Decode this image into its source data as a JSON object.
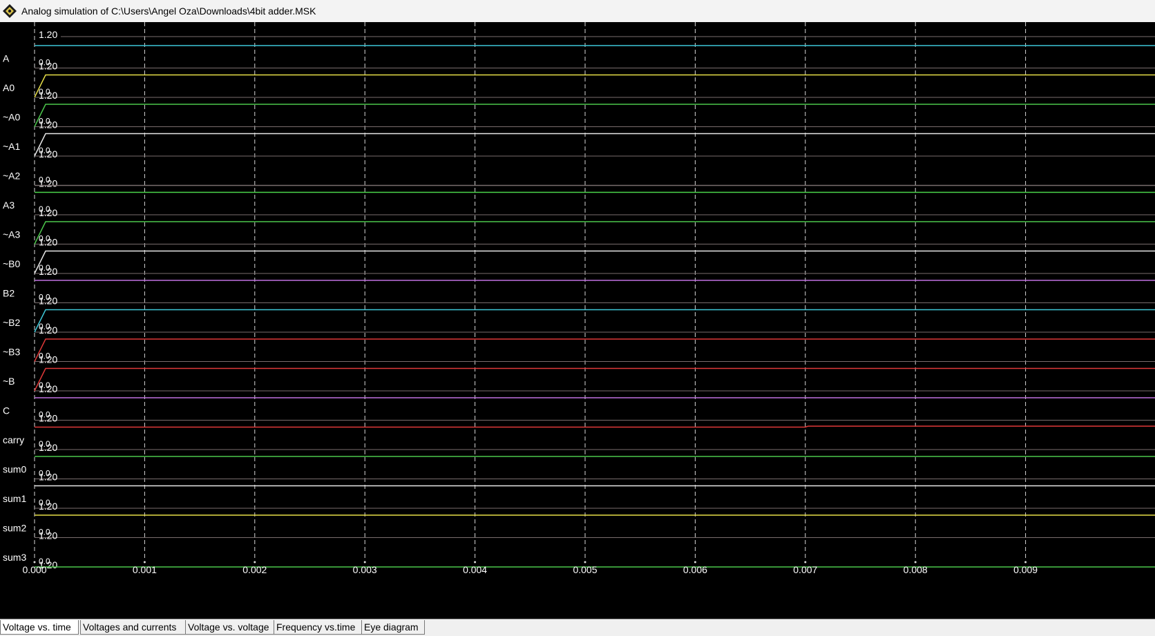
{
  "window": {
    "title": "Analog simulation of C:\\Users\\Angel Oza\\Downloads\\4bit adder.MSK",
    "icon": "microwind-app-icon"
  },
  "colors": {
    "background": "#000000",
    "grid": "#d8d8d8",
    "baseline": "#7a6e6e",
    "label": "#ffffff"
  },
  "tabs": [
    {
      "label": "Voltage vs. time",
      "active": true
    },
    {
      "label": "Voltages and currents",
      "active": false
    },
    {
      "label": "Voltage vs. voltage",
      "active": false
    },
    {
      "label": "Frequency vs.time",
      "active": false
    },
    {
      "label": "Eye diagram",
      "active": false
    }
  ],
  "chart_data": {
    "type": "line",
    "x_axis": {
      "ticks": [
        "0.000",
        "0.001",
        "0.002",
        "0.003",
        "0.004",
        "0.005",
        "0.006",
        "0.007",
        "0.008",
        "0.009"
      ],
      "range": [
        0,
        0.0098
      ]
    },
    "y_tick_labels": {
      "high": "1.20",
      "low": "0.0"
    },
    "grid": true,
    "series": [
      {
        "name": "A",
        "color": "#3ec8d8",
        "start": 1.2,
        "final": 1.2
      },
      {
        "name": "A0",
        "color": "#e8e048",
        "start": 0.0,
        "final": 1.2
      },
      {
        "name": "~A0",
        "color": "#4cc84c",
        "start": 0.0,
        "final": 1.2
      },
      {
        "name": "~A1",
        "color": "#e8e8e8",
        "start": 0.0,
        "final": 1.2
      },
      {
        "name": "~A2",
        "color": "#7a6e6e",
        "start": 0.0,
        "final": 0.0
      },
      {
        "name": "A3",
        "color": "#4cd84c",
        "start": 1.2,
        "final": 1.2
      },
      {
        "name": "~A3",
        "color": "#4cc84c",
        "start": 0.0,
        "final": 1.2
      },
      {
        "name": "~B0",
        "color": "#e8e8e8",
        "start": 0.0,
        "final": 1.2
      },
      {
        "name": "B2",
        "color": "#c070e0",
        "start": 1.2,
        "final": 1.2
      },
      {
        "name": "~B2",
        "color": "#3ec8d8",
        "start": 0.0,
        "final": 1.2
      },
      {
        "name": "~B3",
        "color": "#e03838",
        "start": 0.0,
        "final": 1.2
      },
      {
        "name": "~B",
        "color": "#e03838",
        "start": 0.0,
        "final": 1.2
      },
      {
        "name": "C",
        "color": "#c070e0",
        "start": 1.2,
        "final": 1.2
      },
      {
        "name": "carry",
        "color": "#e03838",
        "start": 1.2,
        "final": 1.2,
        "step_at": 0.007,
        "after_step": 1.25
      },
      {
        "name": "sum0",
        "color": "#4cc84c",
        "start": 1.2,
        "final": 1.2
      },
      {
        "name": "sum1",
        "color": "#e8e8e8",
        "start": 1.2,
        "final": 1.2
      },
      {
        "name": "sum2",
        "color": "#e8e048",
        "start": 1.2,
        "final": 1.2
      },
      {
        "name": "sum3",
        "color": "#4cc84c",
        "start": 0.0,
        "final": 0.0
      }
    ]
  }
}
